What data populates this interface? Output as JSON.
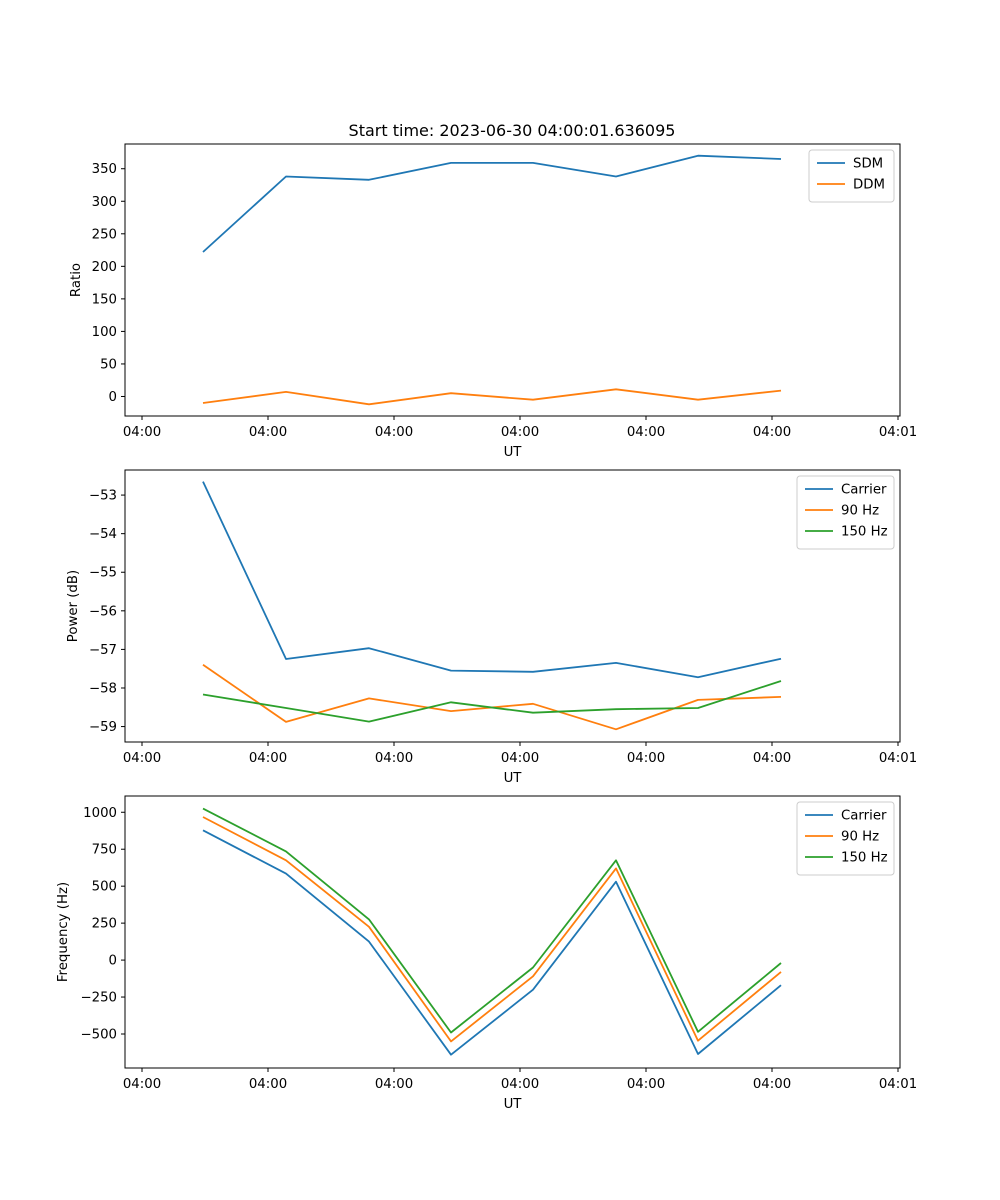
{
  "title": "Start time: 2023-06-30 04:00:01.636095",
  "chart_data": [
    {
      "type": "line",
      "xlabel": "UT",
      "ylabel": "Ratio",
      "x_tick_labels": [
        "04:00",
        "04:00",
        "04:00",
        "04:00",
        "04:00",
        "04:00",
        "04:01"
      ],
      "y_ticks": [
        0,
        50,
        100,
        150,
        200,
        250,
        300,
        350
      ],
      "ylim": [
        -30,
        388
      ],
      "legend_position": "top-right",
      "grid": false,
      "series": [
        {
          "name": "SDM",
          "color": "#1f77b4",
          "values": [
            222,
            338,
            333,
            359,
            359,
            338,
            370,
            365
          ]
        },
        {
          "name": "DDM",
          "color": "#ff7f0e",
          "values": [
            -10,
            7,
            -12,
            5,
            -5,
            11,
            -5,
            9
          ]
        }
      ]
    },
    {
      "type": "line",
      "xlabel": "UT",
      "ylabel": "Power (dB)",
      "x_tick_labels": [
        "04:00",
        "04:00",
        "04:00",
        "04:00",
        "04:00",
        "04:00",
        "04:01"
      ],
      "y_ticks": [
        -59,
        -58,
        -57,
        -56,
        -55,
        -54,
        -53
      ],
      "ylim": [
        -59.4,
        -52.35
      ],
      "legend_position": "top-right",
      "grid": false,
      "series": [
        {
          "name": "Carrier",
          "color": "#1f77b4",
          "values": [
            -52.65,
            -57.25,
            -56.97,
            -57.55,
            -57.58,
            -57.35,
            -57.72,
            -57.24
          ]
        },
        {
          "name": "90 Hz",
          "color": "#ff7f0e",
          "values": [
            -57.4,
            -58.88,
            -58.27,
            -58.6,
            -58.41,
            -59.07,
            -58.31,
            -58.23
          ]
        },
        {
          "name": "150 Hz",
          "color": "#2ca02c",
          "values": [
            -58.17,
            -58.52,
            -58.87,
            -58.37,
            -58.64,
            -58.55,
            -58.52,
            -57.82
          ]
        }
      ]
    },
    {
      "type": "line",
      "xlabel": "UT",
      "ylabel": "Frequency (Hz)",
      "x_tick_labels": [
        "04:00",
        "04:00",
        "04:00",
        "04:00",
        "04:00",
        "04:00",
        "04:01"
      ],
      "y_ticks": [
        -500,
        -250,
        0,
        250,
        500,
        750,
        1000
      ],
      "ylim": [
        -730,
        1110
      ],
      "legend_position": "top-right",
      "grid": false,
      "series": [
        {
          "name": "Carrier",
          "color": "#1f77b4",
          "values": [
            878,
            585,
            125,
            -640,
            -200,
            530,
            -635,
            -170
          ]
        },
        {
          "name": "90 Hz",
          "color": "#ff7f0e",
          "values": [
            968,
            675,
            225,
            -550,
            -110,
            620,
            -545,
            -80
          ]
        },
        {
          "name": "150 Hz",
          "color": "#2ca02c",
          "values": [
            1025,
            735,
            275,
            -490,
            -50,
            675,
            -485,
            -20
          ]
        }
      ]
    }
  ]
}
